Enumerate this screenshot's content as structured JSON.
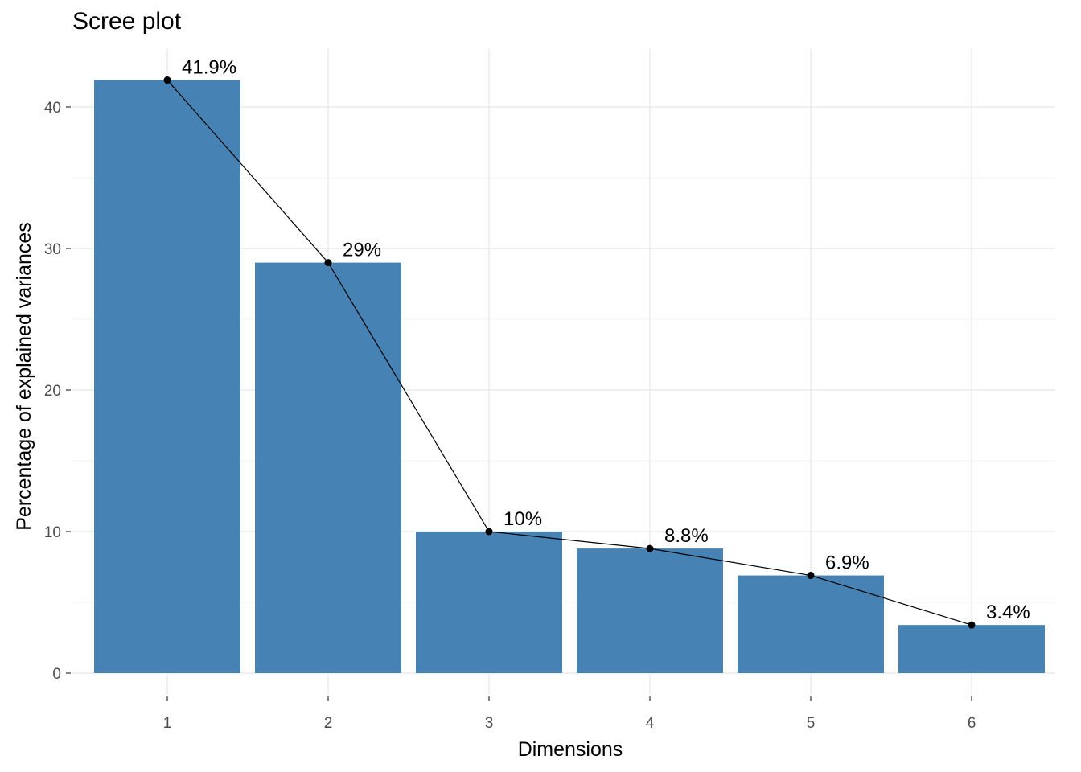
{
  "chart_data": {
    "type": "bar",
    "title": "Scree plot",
    "xlabel": "Dimensions",
    "ylabel": "Percentage of explained variances",
    "categories": [
      "1",
      "2",
      "3",
      "4",
      "5",
      "6"
    ],
    "values": [
      41.9,
      29.0,
      10.0,
      8.8,
      6.9,
      3.4
    ],
    "value_labels": [
      "41.9%",
      "29%",
      "10%",
      "8.8%",
      "6.9%",
      "3.4%"
    ],
    "yticks": [
      0,
      10,
      20,
      30,
      40
    ],
    "ylim": [
      0,
      44
    ],
    "grid": true,
    "overlay_line": true,
    "colors": {
      "bar": "#4682b4",
      "line": "#000000"
    }
  }
}
